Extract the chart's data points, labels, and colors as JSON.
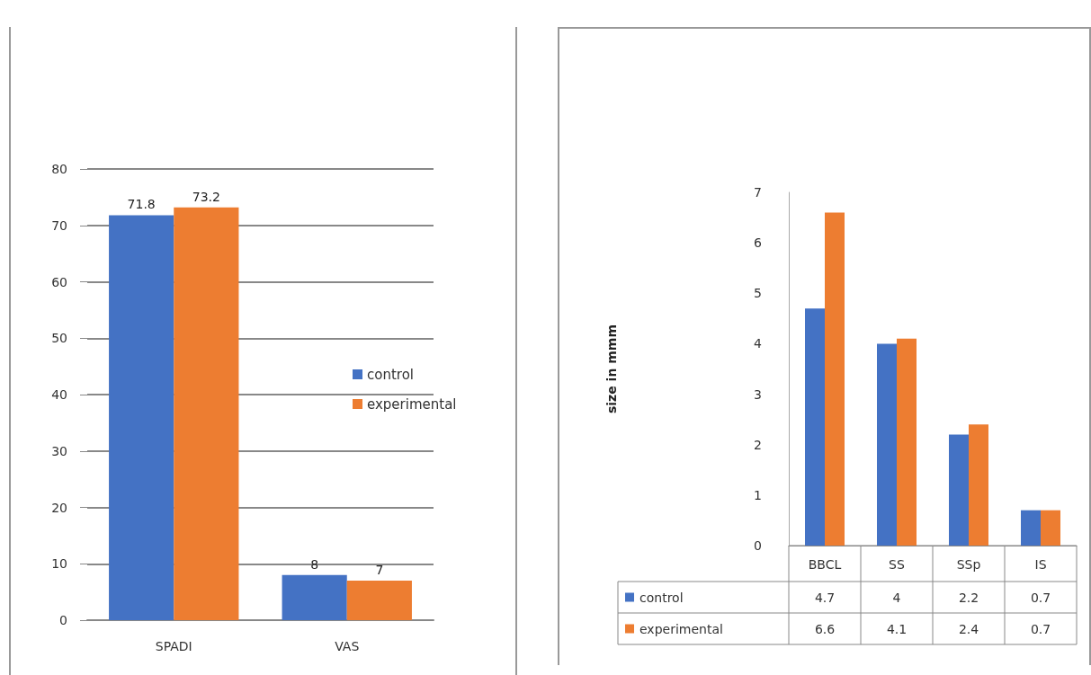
{
  "chart_data": [
    {
      "type": "bar",
      "categories": [
        "SPADI",
        "VAS"
      ],
      "series": [
        {
          "name": "control",
          "color": "#4472c4",
          "values": [
            71.8,
            8
          ]
        },
        {
          "name": "experimental",
          "color": "#ed7d31",
          "values": [
            73.2,
            7
          ]
        }
      ],
      "ylim": [
        0,
        80
      ],
      "yticks": [
        0,
        10,
        20,
        30,
        40,
        50,
        60,
        70,
        80
      ],
      "grid": "y",
      "legend": "right",
      "data_labels": true
    },
    {
      "type": "bar",
      "ylabel": "size in mmm",
      "categories": [
        "BBCL",
        "SS",
        "SSp",
        "IS"
      ],
      "series": [
        {
          "name": "control",
          "color": "#4472c4",
          "values": [
            4.7,
            4,
            2.2,
            0.7
          ]
        },
        {
          "name": "experimental",
          "color": "#ed7d31",
          "values": [
            6.6,
            4.1,
            2.4,
            0.7
          ]
        }
      ],
      "ylim": [
        0,
        7
      ],
      "yticks": [
        0,
        1,
        2,
        3,
        4,
        5,
        6,
        7
      ],
      "grid": false,
      "legend": "bottom left",
      "data_labels": true
    }
  ]
}
